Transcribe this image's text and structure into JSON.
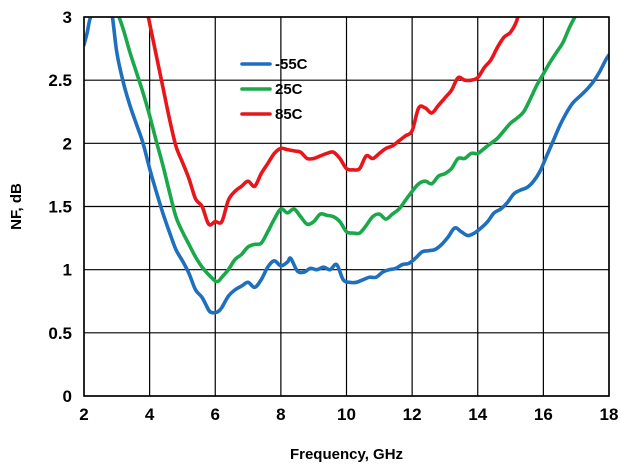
{
  "chart_data": {
    "type": "line",
    "title": "",
    "xlabel": "Frequency, GHz",
    "ylabel": "NF, dB",
    "xlim": [
      2,
      18
    ],
    "ylim": [
      0,
      3
    ],
    "xticks": [
      2,
      4,
      6,
      8,
      10,
      12,
      14,
      16,
      18
    ],
    "yticks": [
      0,
      0.5,
      1,
      1.5,
      2,
      2.5,
      3
    ],
    "xtick_labels": [
      "2",
      "4",
      "6",
      "8",
      "10",
      "12",
      "14",
      "16",
      "18"
    ],
    "ytick_labels": [
      "0",
      "0.5",
      "1",
      "1.5",
      "2",
      "2.5",
      "3"
    ],
    "grid": true,
    "legend_position": "top-center",
    "series": [
      {
        "name": "-55C",
        "color": "#1f6fbf",
        "x": [
          2.0,
          2.1,
          2.2,
          2.5,
          2.8,
          3.0,
          3.2,
          3.4,
          3.6,
          3.8,
          4.0,
          4.2,
          4.4,
          4.6,
          4.8,
          5.0,
          5.2,
          5.4,
          5.6,
          5.8,
          5.9,
          6.0,
          6.1,
          6.2,
          6.4,
          6.6,
          6.8,
          7.0,
          7.2,
          7.4,
          7.6,
          7.8,
          8.0,
          8.2,
          8.3,
          8.5,
          8.7,
          8.9,
          9.1,
          9.3,
          9.5,
          9.7,
          9.9,
          10.1,
          10.3,
          10.5,
          10.7,
          10.9,
          11.1,
          11.3,
          11.5,
          11.7,
          11.9,
          12.1,
          12.3,
          12.5,
          12.7,
          12.9,
          13.1,
          13.3,
          13.5,
          13.7,
          13.9,
          14.1,
          14.3,
          14.5,
          14.7,
          14.9,
          15.1,
          15.3,
          15.5,
          15.7,
          15.9,
          16.1,
          16.3,
          16.5,
          16.7,
          16.9,
          17.1,
          17.3,
          17.5,
          17.7,
          17.9,
          18.0
        ],
        "values": [
          2.78,
          2.88,
          3.0,
          3.2,
          3.1,
          2.72,
          2.48,
          2.3,
          2.15,
          2.0,
          1.8,
          1.62,
          1.45,
          1.3,
          1.16,
          1.07,
          0.97,
          0.84,
          0.78,
          0.68,
          0.66,
          0.66,
          0.67,
          0.7,
          0.79,
          0.84,
          0.87,
          0.9,
          0.86,
          0.92,
          1.02,
          1.07,
          1.03,
          1.06,
          1.09,
          0.99,
          0.98,
          1.01,
          1.0,
          1.02,
          1.0,
          1.04,
          0.92,
          0.9,
          0.9,
          0.92,
          0.94,
          0.94,
          0.98,
          1.0,
          1.01,
          1.04,
          1.05,
          1.09,
          1.14,
          1.15,
          1.16,
          1.2,
          1.26,
          1.33,
          1.3,
          1.27,
          1.29,
          1.33,
          1.38,
          1.45,
          1.48,
          1.53,
          1.6,
          1.63,
          1.65,
          1.7,
          1.78,
          1.9,
          2.02,
          2.14,
          2.24,
          2.32,
          2.37,
          2.42,
          2.48,
          2.56,
          2.66,
          2.7
        ]
      },
      {
        "name": "25C",
        "color": "#1aa84a",
        "x": [
          2.8,
          3.0,
          3.2,
          3.4,
          3.6,
          3.8,
          4.0,
          4.2,
          4.4,
          4.6,
          4.8,
          5.0,
          5.2,
          5.4,
          5.6,
          5.8,
          6.0,
          6.1,
          6.2,
          6.4,
          6.6,
          6.8,
          7.0,
          7.2,
          7.4,
          7.6,
          7.8,
          8.0,
          8.2,
          8.4,
          8.6,
          8.8,
          9.0,
          9.2,
          9.4,
          9.6,
          9.8,
          10.0,
          10.2,
          10.4,
          10.6,
          10.8,
          11.0,
          11.2,
          11.4,
          11.6,
          11.8,
          12.0,
          12.2,
          12.4,
          12.6,
          12.8,
          13.0,
          13.2,
          13.4,
          13.6,
          13.8,
          14.0,
          14.2,
          14.4,
          14.6,
          14.8,
          15.0,
          15.2,
          15.4,
          15.6,
          15.8,
          16.0,
          16.2,
          16.4,
          16.6,
          16.8,
          17.0
        ],
        "values": [
          3.2,
          3.05,
          2.9,
          2.72,
          2.56,
          2.4,
          2.22,
          2.02,
          1.83,
          1.62,
          1.42,
          1.3,
          1.2,
          1.1,
          1.02,
          0.96,
          0.91,
          0.91,
          0.94,
          1.0,
          1.08,
          1.12,
          1.18,
          1.2,
          1.21,
          1.3,
          1.4,
          1.48,
          1.45,
          1.48,
          1.42,
          1.36,
          1.38,
          1.44,
          1.43,
          1.42,
          1.38,
          1.3,
          1.29,
          1.29,
          1.35,
          1.42,
          1.44,
          1.4,
          1.44,
          1.48,
          1.55,
          1.62,
          1.68,
          1.7,
          1.68,
          1.74,
          1.76,
          1.8,
          1.88,
          1.88,
          1.92,
          1.92,
          1.96,
          2.0,
          2.04,
          2.1,
          2.16,
          2.2,
          2.25,
          2.35,
          2.46,
          2.55,
          2.64,
          2.72,
          2.8,
          2.92,
          3.02
        ]
      },
      {
        "name": "85C",
        "color": "#e8161b",
        "x": [
          3.8,
          4.0,
          4.2,
          4.4,
          4.6,
          4.8,
          5.0,
          5.2,
          5.4,
          5.6,
          5.8,
          6.0,
          6.2,
          6.4,
          6.6,
          6.8,
          7.0,
          7.2,
          7.4,
          7.6,
          7.8,
          8.0,
          8.2,
          8.4,
          8.6,
          8.8,
          9.0,
          9.2,
          9.4,
          9.6,
          9.8,
          10.0,
          10.2,
          10.4,
          10.6,
          10.8,
          11.0,
          11.2,
          11.4,
          11.6,
          11.8,
          12.0,
          12.2,
          12.4,
          12.6,
          12.8,
          13.0,
          13.2,
          13.4,
          13.6,
          13.8,
          14.0,
          14.2,
          14.4,
          14.6,
          14.8,
          15.0,
          15.2,
          15.4
        ],
        "values": [
          3.2,
          2.95,
          2.7,
          2.45,
          2.2,
          1.98,
          1.85,
          1.72,
          1.56,
          1.5,
          1.36,
          1.38,
          1.38,
          1.55,
          1.62,
          1.66,
          1.7,
          1.66,
          1.76,
          1.84,
          1.92,
          1.96,
          1.95,
          1.94,
          1.93,
          1.88,
          1.88,
          1.9,
          1.92,
          1.93,
          1.88,
          1.8,
          1.79,
          1.8,
          1.9,
          1.88,
          1.92,
          1.96,
          1.98,
          2.02,
          2.06,
          2.1,
          2.28,
          2.28,
          2.24,
          2.3,
          2.36,
          2.42,
          2.52,
          2.5,
          2.5,
          2.52,
          2.6,
          2.66,
          2.76,
          2.84,
          2.88,
          2.98,
          3.2
        ]
      }
    ]
  }
}
